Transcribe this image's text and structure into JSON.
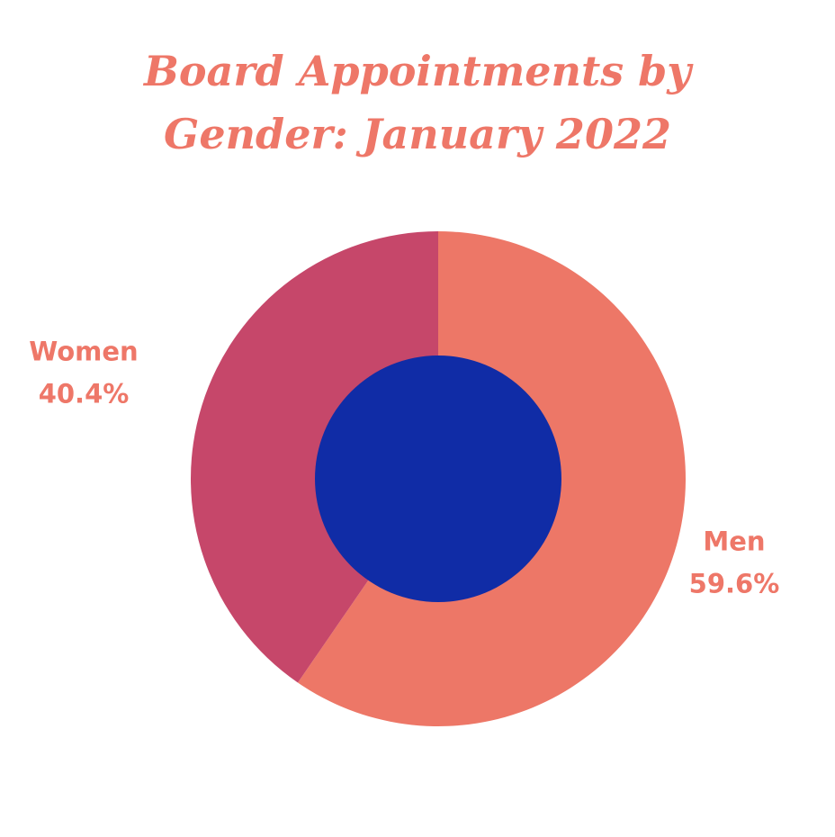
{
  "chart_data": {
    "type": "pie",
    "title": "Board Appointments by Gender: January 2022",
    "categories": [
      "Men",
      "Women"
    ],
    "values": [
      59.6,
      40.4
    ],
    "value_labels": [
      "59.6%",
      "40.4%"
    ],
    "colors": [
      "#ed7767",
      "#c6476a"
    ],
    "hole_color": "#102ca6"
  }
}
